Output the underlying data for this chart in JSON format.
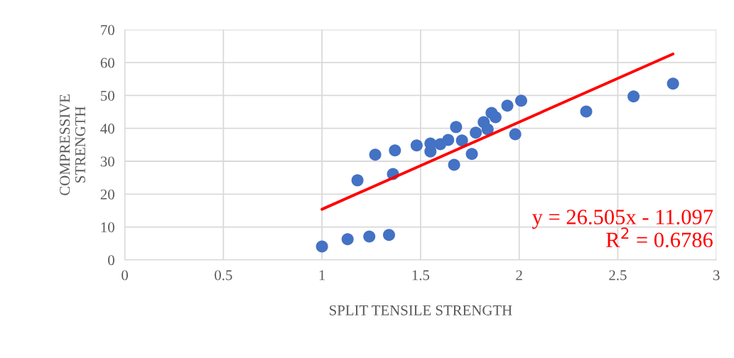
{
  "chart_data": {
    "type": "scatter",
    "xlabel": "SPLIT TENSILE STRENGTH",
    "ylabel": "COMPRESSIVE\nSTRENGTH",
    "xlim": [
      0,
      3
    ],
    "xticks": [
      0,
      0.5,
      1,
      1.5,
      2,
      2.5,
      3
    ],
    "ylim": [
      0,
      70
    ],
    "yticks": [
      0,
      10,
      20,
      30,
      40,
      50,
      60,
      70
    ],
    "grid": true,
    "series": [
      {
        "marker": "circle",
        "color": "#4472c4",
        "x": [
          1.0,
          1.13,
          1.24,
          1.34,
          1.18,
          1.27,
          1.37,
          1.36,
          1.48,
          1.55,
          1.55,
          1.6,
          1.64,
          1.68,
          1.71,
          1.67,
          1.76,
          1.78,
          1.82,
          1.84,
          1.86,
          1.88,
          1.94,
          1.98,
          2.01,
          2.34,
          2.58,
          2.78
        ],
        "values": [
          4.1,
          6.3,
          7.1,
          7.6,
          24.2,
          32.0,
          33.3,
          26.1,
          34.8,
          35.4,
          33.0,
          35.2,
          36.5,
          40.4,
          36.3,
          28.9,
          32.2,
          38.7,
          41.9,
          39.7,
          44.7,
          43.4,
          46.9,
          38.2,
          48.4,
          45.1,
          49.7,
          53.6
        ]
      },
      {
        "type": "line",
        "color": "#ff0000",
        "x": [
          1.0,
          2.78
        ],
        "values": [
          15.4,
          62.6
        ]
      }
    ],
    "annotations": [
      "y = 26.505x - 11.097",
      "R$^{2}$ = 0.6786"
    ]
  }
}
